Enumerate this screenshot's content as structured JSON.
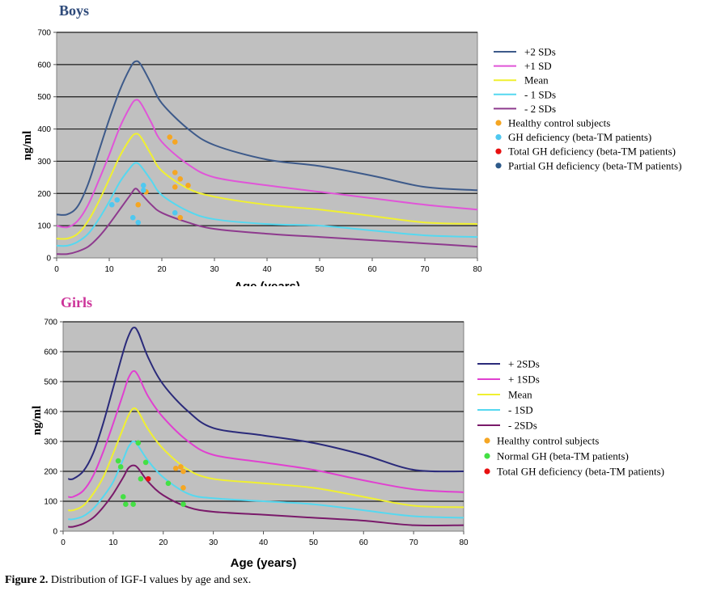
{
  "caption": {
    "label": "Figure 2.",
    "text": " Distribution of IGF-I values by age and sex."
  },
  "chart_data": [
    {
      "type": "line",
      "title": "Boys",
      "title_color": "#2e4a7a",
      "ylabel": "ng/ml",
      "xlabel": "Age (years)",
      "xlim": [
        0,
        80
      ],
      "ylim": [
        0,
        700
      ],
      "xticks": [
        0,
        10,
        20,
        30,
        40,
        50,
        60,
        70,
        80
      ],
      "yticks": [
        0,
        100,
        200,
        300,
        400,
        500,
        600,
        700
      ],
      "grid": true,
      "plot_background": "#c0c0c0",
      "legend_position": "right",
      "series": [
        {
          "name": "+2 SDs",
          "color": "#3d5a8a",
          "x": [
            0,
            2,
            4,
            6,
            8,
            10,
            12,
            14,
            15,
            16,
            18,
            20,
            25,
            30,
            40,
            50,
            60,
            70,
            80
          ],
          "y": [
            135,
            135,
            160,
            230,
            330,
            430,
            520,
            590,
            610,
            600,
            540,
            480,
            400,
            350,
            305,
            285,
            255,
            220,
            210
          ]
        },
        {
          "name": "+1 SD",
          "color": "#e055d8",
          "x": [
            0,
            2,
            4,
            6,
            8,
            10,
            12,
            14,
            15,
            16,
            18,
            20,
            25,
            30,
            40,
            50,
            60,
            70,
            80
          ],
          "y": [
            100,
            95,
            115,
            165,
            240,
            320,
            405,
            470,
            490,
            480,
            420,
            360,
            290,
            250,
            225,
            205,
            185,
            165,
            150
          ]
        },
        {
          "name": "Mean",
          "color": "#f0f030",
          "x": [
            0,
            2,
            4,
            6,
            8,
            10,
            12,
            14,
            15,
            16,
            18,
            20,
            25,
            30,
            40,
            50,
            60,
            70,
            80
          ],
          "y": [
            60,
            60,
            75,
            115,
            175,
            245,
            315,
            370,
            385,
            375,
            320,
            270,
            215,
            190,
            165,
            150,
            130,
            110,
            105
          ]
        },
        {
          "name": "- 1 SDs",
          "color": "#55d8f0",
          "x": [
            0,
            2,
            4,
            6,
            8,
            10,
            12,
            14,
            15,
            16,
            18,
            20,
            25,
            30,
            40,
            50,
            60,
            70,
            80
          ],
          "y": [
            38,
            38,
            50,
            75,
            120,
            175,
            235,
            280,
            295,
            285,
            240,
            195,
            145,
            120,
            105,
            100,
            85,
            70,
            65
          ]
        },
        {
          "name": "- 2 SDs",
          "color": "#8e3a8e",
          "x": [
            0,
            2,
            4,
            6,
            8,
            10,
            12,
            14,
            15,
            16,
            18,
            20,
            25,
            30,
            40,
            50,
            60,
            70,
            80
          ],
          "y": [
            12,
            12,
            20,
            35,
            65,
            105,
            150,
            195,
            215,
            200,
            165,
            140,
            110,
            90,
            75,
            65,
            55,
            45,
            35
          ]
        }
      ],
      "scatter": [
        {
          "name": "Healthy control subjects",
          "color": "#f5a623",
          "points": [
            [
              15.5,
              165
            ],
            [
              21.5,
              375
            ],
            [
              22.5,
              360
            ],
            [
              22.5,
              265
            ],
            [
              23.5,
              245
            ],
            [
              25,
              225
            ],
            [
              22.5,
              220
            ],
            [
              23.5,
              125
            ],
            [
              17,
              205
            ]
          ]
        },
        {
          "name": "GH deficiency (beta-TM patients)",
          "color": "#4fc8f0",
          "points": [
            [
              10.5,
              165
            ],
            [
              11.5,
              180
            ],
            [
              14.5,
              125
            ],
            [
              15.5,
              110
            ],
            [
              16.5,
              225
            ],
            [
              16.5,
              210
            ],
            [
              22.5,
              140
            ]
          ]
        },
        {
          "name": "Total GH deficiency (beta-TM patients)",
          "color": "#e81010",
          "points": []
        },
        {
          "name": "Partial GH deficiency (beta-TM patients)",
          "color": "#2e5a8a",
          "points": []
        }
      ]
    },
    {
      "type": "line",
      "title": "Girls",
      "title_color": "#cc3399",
      "ylabel": "ng/ml",
      "xlabel": "Age (years)",
      "xlim": [
        0,
        80
      ],
      "ylim": [
        0,
        700
      ],
      "xticks": [
        0,
        10,
        20,
        30,
        40,
        50,
        60,
        70,
        80
      ],
      "yticks": [
        0,
        100,
        200,
        300,
        400,
        500,
        600,
        700
      ],
      "grid": true,
      "plot_background": "#c0c0c0",
      "legend_position": "right",
      "series": [
        {
          "name": "+ 2SDs",
          "color": "#2a2a7a",
          "x": [
            1,
            2,
            4,
            6,
            8,
            10,
            12,
            13,
            14,
            15,
            17,
            20,
            25,
            30,
            40,
            50,
            60,
            70,
            80
          ],
          "y": [
            175,
            175,
            200,
            260,
            360,
            480,
            600,
            650,
            680,
            665,
            580,
            490,
            400,
            345,
            320,
            295,
            255,
            205,
            200
          ]
        },
        {
          "name": "+ 1SDs",
          "color": "#e040d0",
          "x": [
            1,
            2,
            4,
            6,
            8,
            10,
            12,
            13,
            14,
            15,
            17,
            20,
            25,
            30,
            40,
            50,
            60,
            70,
            80
          ],
          "y": [
            115,
            115,
            135,
            185,
            265,
            360,
            460,
            510,
            535,
            520,
            450,
            380,
            300,
            255,
            230,
            205,
            170,
            140,
            130
          ]
        },
        {
          "name": "Mean",
          "color": "#f0f030",
          "x": [
            1,
            2,
            4,
            6,
            8,
            10,
            12,
            13,
            14,
            15,
            17,
            20,
            25,
            30,
            40,
            50,
            60,
            70,
            80
          ],
          "y": [
            70,
            70,
            85,
            125,
            180,
            260,
            345,
            385,
            410,
            400,
            340,
            275,
            205,
            175,
            160,
            145,
            115,
            85,
            80
          ]
        },
        {
          "name": "- 1SD",
          "color": "#55d8f0",
          "x": [
            1,
            2,
            4,
            6,
            8,
            10,
            12,
            13,
            14,
            15,
            17,
            20,
            25,
            30,
            40,
            50,
            60,
            70,
            80
          ],
          "y": [
            40,
            40,
            50,
            75,
            115,
            165,
            240,
            280,
            300,
            285,
            235,
            180,
            125,
            110,
            100,
            90,
            70,
            50,
            45
          ]
        },
        {
          "name": "- 2SDs",
          "color": "#7a1a6a",
          "x": [
            1,
            2,
            4,
            6,
            8,
            10,
            12,
            13,
            14,
            15,
            17,
            20,
            25,
            30,
            40,
            50,
            60,
            70,
            80
          ],
          "y": [
            15,
            15,
            25,
            45,
            80,
            125,
            180,
            210,
            220,
            210,
            165,
            120,
            80,
            65,
            55,
            45,
            35,
            20,
            20
          ]
        }
      ],
      "scatter": [
        {
          "name": "Healthy control subjects",
          "color": "#f5a623",
          "points": [
            [
              22.5,
              210
            ],
            [
              23.5,
              215
            ],
            [
              24,
              200
            ],
            [
              24,
              145
            ]
          ]
        },
        {
          "name": "Normal GH (beta-TM   patients)",
          "color": "#44e044",
          "points": [
            [
              11,
              235
            ],
            [
              11.5,
              215
            ],
            [
              12,
              115
            ],
            [
              12.5,
              90
            ],
            [
              14,
              90
            ],
            [
              15,
              295
            ],
            [
              15.5,
              175
            ],
            [
              16.5,
              230
            ],
            [
              21,
              160
            ],
            [
              24,
              90
            ]
          ]
        },
        {
          "name": "Total GH deficiency (beta-TM patients)",
          "color": "#e81010",
          "points": [
            [
              17,
              175
            ]
          ]
        }
      ]
    }
  ]
}
